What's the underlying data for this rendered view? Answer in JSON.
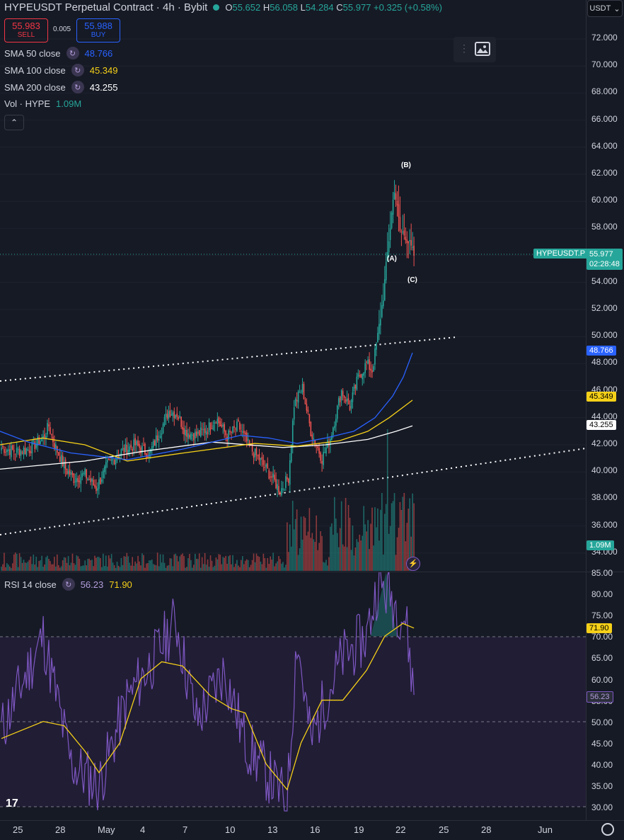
{
  "header": {
    "symbol_title": "HYPEUSDT Perpetual Contract · 4h · Bybit",
    "o_label": "O",
    "o_val": "55.652",
    "h_label": "H",
    "h_val": "56.058",
    "l_label": "L",
    "l_val": "54.284",
    "c_label": "C",
    "c_val": "55.977",
    "change": "+0.325 (+0.58%)"
  },
  "trade": {
    "sell_price": "55.983",
    "sell_label": "SELL",
    "spread": "0.005",
    "buy_price": "55.988",
    "buy_label": "BUY"
  },
  "indicators": [
    {
      "name": "SMA 50 close",
      "value": "48.766",
      "color": "#2962ff"
    },
    {
      "name": "SMA 100 close",
      "value": "45.349",
      "color": "#f5d018"
    },
    {
      "name": "SMA 200 close",
      "value": "43.255",
      "color": "#ffffff"
    }
  ],
  "volume": {
    "name": "Vol · HYPE",
    "value": "1.09M"
  },
  "currency": "USDT",
  "price_axis": [
    "72.000",
    "70.000",
    "68.000",
    "66.000",
    "64.000",
    "62.000",
    "60.000",
    "58.000",
    "56.000",
    "54.000",
    "52.000",
    "50.000",
    "48.000",
    "46.000",
    "44.000",
    "42.000",
    "40.000",
    "38.000",
    "36.000",
    "34.000"
  ],
  "price_tags": {
    "symbol": "HYPEUSDT.P",
    "last": "55.977",
    "countdown": "02:28:48",
    "sma50": "48.766",
    "sma100": "45.349",
    "sma200": "43.255",
    "vol": "1.09M"
  },
  "waves": {
    "a": "(A)",
    "b": "(B)",
    "c": "(C)"
  },
  "rsi": {
    "name": "RSI 14 close",
    "value": "56.23",
    "ma_value": "71.90",
    "axis": [
      "85.00",
      "80.00",
      "75.00",
      "70.00",
      "65.00",
      "60.00",
      "55.00",
      "50.00",
      "45.00",
      "40.00",
      "35.00",
      "30.00"
    ]
  },
  "time_axis": [
    "25",
    "28",
    "May",
    "4",
    "7",
    "10",
    "13",
    "16",
    "19",
    "22",
    "25",
    "28",
    "Jun"
  ],
  "colors": {
    "up": "#26a69a",
    "down": "#ef5350",
    "bg": "#161a25",
    "rsi_line": "#7e57c2",
    "rsi_ma": "#f5d018"
  },
  "chart_data": {
    "type": "candlestick",
    "title": "HYPEUSDT Perpetual Contract · 4h · Bybit",
    "ylim": [
      33.5,
      73
    ],
    "x": [
      "25",
      "28",
      "May",
      "4",
      "7",
      "10",
      "13",
      "16",
      "19",
      "22"
    ],
    "close_anchors": [
      41.5,
      40.2,
      39.0,
      41.5,
      44.2,
      43.5,
      41.5,
      38.5,
      46.5,
      47.8,
      49.0,
      55.977
    ],
    "sma50_last": 48.766,
    "sma100_last": 45.349,
    "sma200_last": 43.255,
    "rsi_last": 56.23,
    "rsi_ma_last": 71.9
  }
}
